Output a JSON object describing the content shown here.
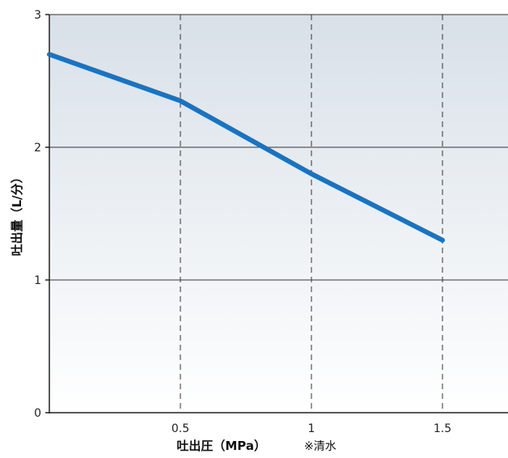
{
  "chart_data": {
    "type": "line",
    "xlabel": "吐出圧（MPa）",
    "xlabel_note": "※清水",
    "ylabel": "吐出量（L/分）",
    "xlim": [
      0,
      1.75
    ],
    "ylim": [
      0,
      3
    ],
    "x_ticks": [
      {
        "value": 0.5,
        "label": "0.5"
      },
      {
        "value": 1,
        "label": "1"
      },
      {
        "value": 1.5,
        "label": "1.5"
      }
    ],
    "y_ticks": [
      {
        "value": 0,
        "label": "0"
      },
      {
        "value": 1,
        "label": "1"
      },
      {
        "value": 2,
        "label": "2"
      },
      {
        "value": 3,
        "label": "3"
      }
    ],
    "grid": {
      "horizontal": "solid",
      "vertical": "dashed"
    },
    "series": [
      {
        "color": "#1a73c0",
        "points": [
          {
            "x": 0,
            "y": 2.7
          },
          {
            "x": 0.5,
            "y": 2.35
          },
          {
            "x": 1,
            "y": 1.8
          },
          {
            "x": 1.5,
            "y": 1.3
          }
        ]
      }
    ],
    "colors": {
      "background_top": "#d8e0e8",
      "background_bottom": "#ffffff",
      "grid": "#333333",
      "axis": "#222222"
    }
  }
}
